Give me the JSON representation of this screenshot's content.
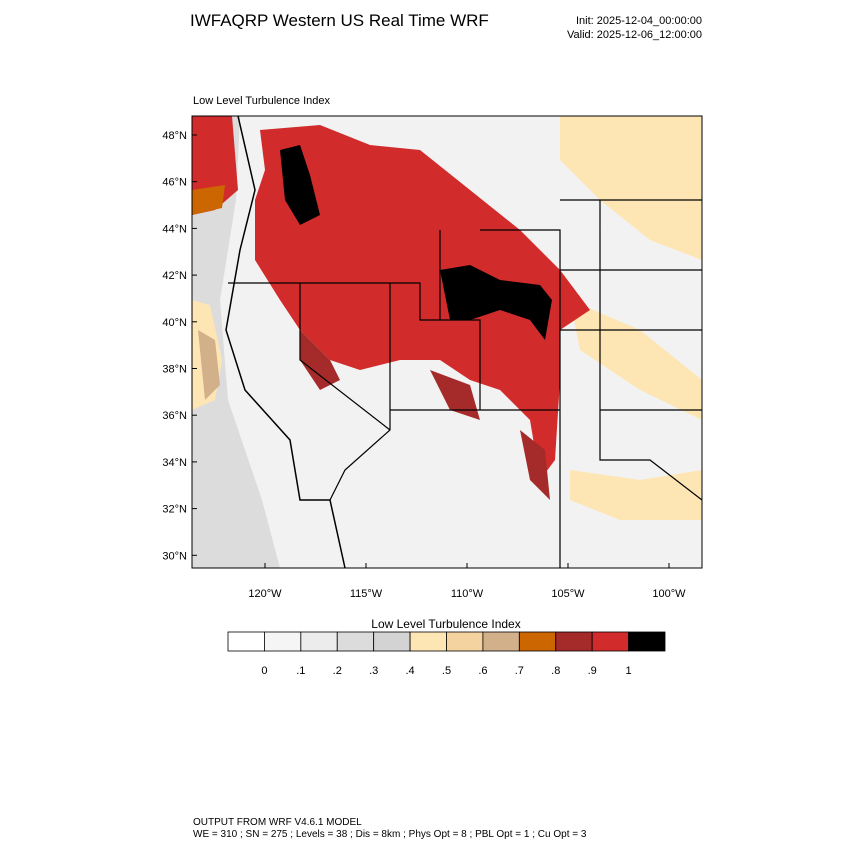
{
  "header": {
    "title": "IWFAQRP Western US Real Time WRF",
    "init": "Init: 2025-12-04_00:00:00",
    "valid": "Valid: 2025-12-06_12:00:00"
  },
  "map": {
    "title": "Low Level Turbulence Index",
    "lat_labels": [
      "48°N",
      "46°N",
      "44°N",
      "42°N",
      "40°N",
      "38°N",
      "36°N",
      "34°N",
      "32°N",
      "30°N"
    ],
    "lon_labels": [
      "120°W",
      "115°W",
      "110°W",
      "105°W",
      "100°W"
    ]
  },
  "colorbar": {
    "title": "Low Level Turbulence Index",
    "colors": [
      "#ffffff",
      "#f5f5f5",
      "#ececec",
      "#dcdcdc",
      "#d3d3d3",
      "#fde6b4",
      "#f5d3a0",
      "#d2b08a",
      "#cc6600",
      "#a52a2a",
      "#d22b2b",
      "#000000"
    ],
    "labels": [
      "0",
      ".1",
      ".2",
      ".3",
      ".4",
      ".5",
      ".6",
      ".7",
      ".8",
      ".9",
      "1"
    ]
  },
  "footer": {
    "line1": "OUTPUT FROM WRF V4.6.1 MODEL",
    "line2": "WE = 310 ; SN = 275 ; Levels = 38 ; Dis = 8km ; Phys Opt = 8 ; PBL Opt = 1 ; Cu Opt = 3"
  }
}
